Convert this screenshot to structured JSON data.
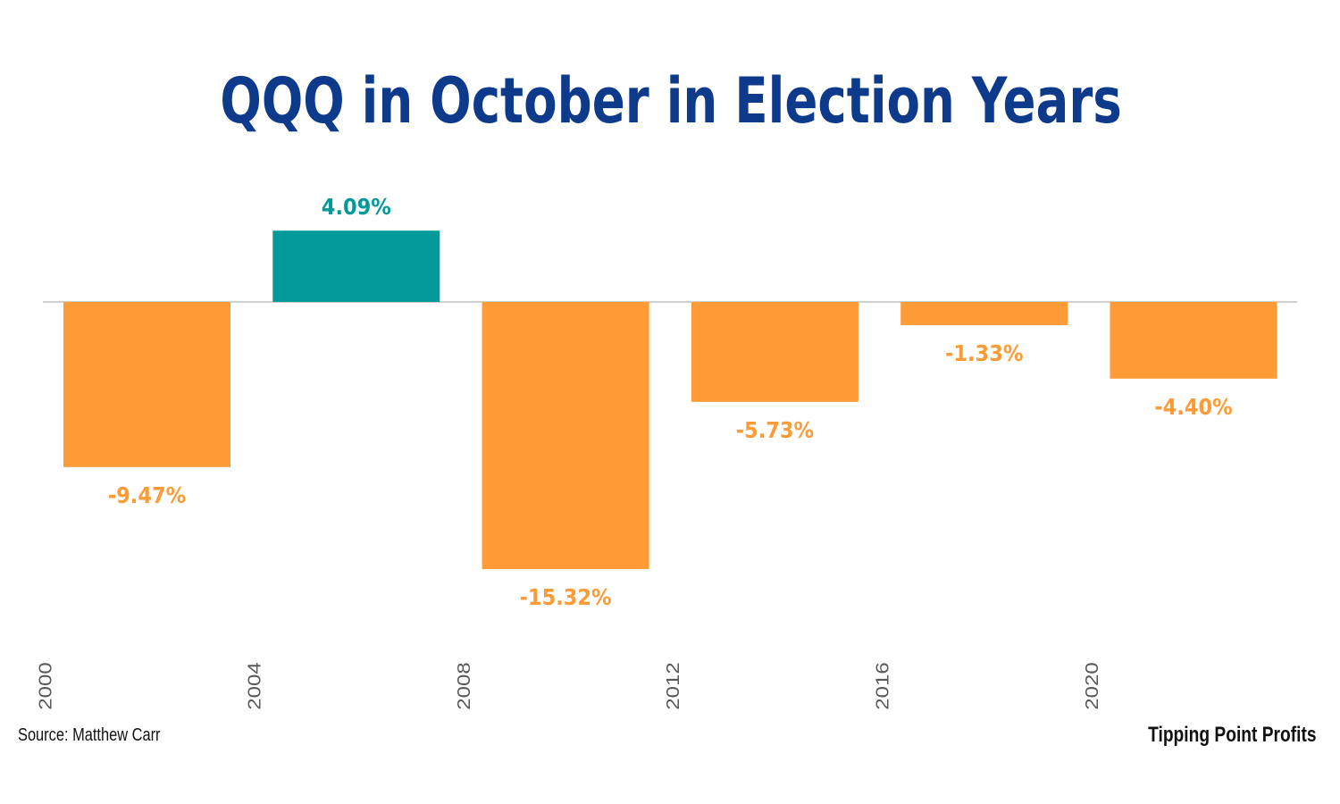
{
  "chart_data": {
    "type": "bar",
    "title": "QQQ in October in Election Years",
    "categories": [
      "2000",
      "2004",
      "2008",
      "2012",
      "2016",
      "2020"
    ],
    "values": [
      -9.47,
      4.09,
      -15.32,
      -5.73,
      -1.33,
      -4.4
    ],
    "data_labels": [
      "-9.47%",
      "4.09%",
      "-15.32%",
      "-5.73%",
      "-1.33%",
      "-4.40%"
    ],
    "ylim": [
      -15.32,
      4.09
    ],
    "grid": false,
    "colors": {
      "positive": "#039a99",
      "negative": "#fd9b37",
      "baseline": "#d0d0d0",
      "title": "#0d3a8a"
    }
  },
  "footer": {
    "source": "Source: Matthew Carr",
    "brand": "Tipping Point Profits"
  }
}
